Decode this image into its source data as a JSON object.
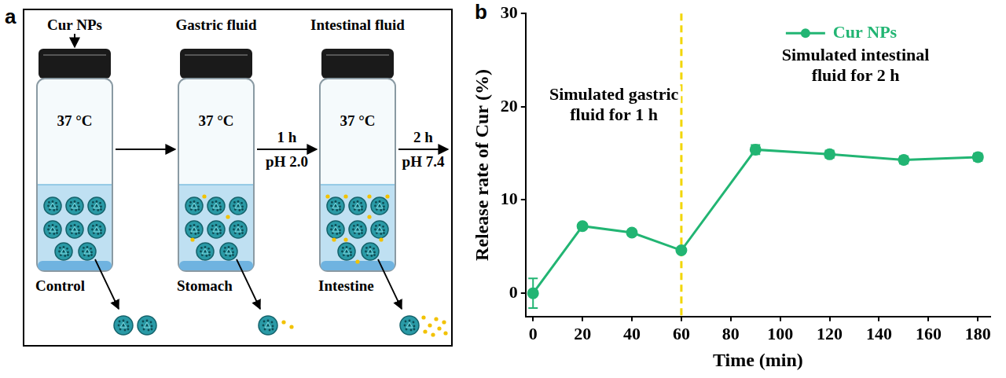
{
  "diagram": {
    "letter": "a",
    "steps": [
      {
        "label": "Cur NPs",
        "temperature": "37 °C",
        "stage": "Control"
      },
      {
        "label": "Gastric fluid",
        "temperature": "37 °C",
        "stage": "Stomach"
      },
      {
        "label": "Intestinal fluid",
        "temperature": "37 °C",
        "stage": "Intestine"
      }
    ],
    "transitions": [
      {
        "time": "1 h",
        "condition": "pH 2.0"
      },
      {
        "time": "2 h",
        "condition": "pH 7.4"
      }
    ]
  },
  "chart_data": {
    "type": "line",
    "letter": "b",
    "x_label": "Time (min)",
    "y_label": "Release rate of Cur (%)",
    "x": [
      0,
      20,
      40,
      60,
      90,
      120,
      150,
      180
    ],
    "series": [
      {
        "name": "Cur NPs",
        "color": "#22b573",
        "marker": "circle",
        "line_style": "solid",
        "values": [
          0,
          7.2,
          6.5,
          4.6,
          15.4,
          14.9,
          14.3,
          14.6
        ],
        "errors": [
          1.6,
          0.3,
          0.3,
          0.3,
          0.5,
          0.4,
          0.4,
          0.4
        ]
      }
    ],
    "xlim": [
      -3,
      185
    ],
    "xticks": [
      0,
      20,
      40,
      60,
      80,
      100,
      120,
      140,
      160,
      180
    ],
    "ylim": [
      -2.5,
      30
    ],
    "yticks": [
      0,
      10,
      20,
      30
    ],
    "grid": false,
    "legend": "upper right",
    "reference_lines": [
      {
        "x": 60,
        "color": "#f2d600",
        "line_style": "dashed"
      }
    ],
    "annotations": [
      [
        "Simulated gastric",
        "fluid for 1 h"
      ],
      [
        "Simulated intestinal",
        "fluid for 2 h"
      ]
    ]
  }
}
